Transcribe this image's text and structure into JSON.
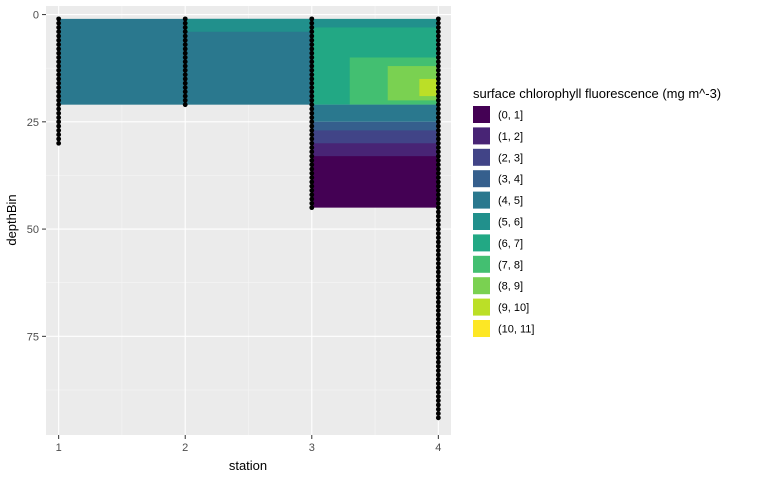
{
  "chart_data": {
    "type": "heatmap",
    "title": "",
    "xlabel": "station",
    "ylabel": "depthBin",
    "x_ticks": [
      1,
      2,
      3,
      4
    ],
    "y_ticks": [
      0,
      25,
      50,
      75
    ],
    "xlim": [
      0.9,
      4.1
    ],
    "ylim": [
      98,
      -2
    ],
    "y_reversed": true,
    "grid": true,
    "legend_position": "right",
    "legend": {
      "title": "surface chlorophyll fluorescence (mg m^-3)",
      "bins": [
        "(0, 1]",
        "(1, 2]",
        "(2, 3]",
        "(3, 4]",
        "(4, 5]",
        "(5, 6]",
        "(6, 7]",
        "(7, 8]",
        "(8, 9]",
        "(9, 10]",
        "(10, 11]"
      ],
      "colors": [
        "#440154",
        "#482475",
        "#414487",
        "#355F8D",
        "#2A788E",
        "#21908C",
        "#22A884",
        "#43BF71",
        "#7AD151",
        "#BBDF27",
        "#FDE725"
      ]
    },
    "regions": [
      {
        "x": [
          1,
          3
        ],
        "depth": [
          1,
          21
        ],
        "bin": "(4, 5]"
      },
      {
        "x": [
          2,
          3
        ],
        "depth": [
          1,
          4
        ],
        "bin": "(5, 6]"
      },
      {
        "x": [
          3,
          4
        ],
        "depth": [
          1,
          21
        ],
        "bin": "(5, 6]"
      },
      {
        "x": [
          3,
          4
        ],
        "depth": [
          3,
          21
        ],
        "bin": "(6, 7]"
      },
      {
        "x": [
          3.3,
          4
        ],
        "depth": [
          10,
          21
        ],
        "bin": "(7, 8]"
      },
      {
        "x": [
          3.6,
          4
        ],
        "depth": [
          12,
          20
        ],
        "bin": "(8, 9]"
      },
      {
        "x": [
          3.85,
          4
        ],
        "depth": [
          15,
          19
        ],
        "bin": "(9, 10]"
      },
      {
        "x": [
          3,
          4
        ],
        "depth": [
          21,
          25
        ],
        "bin": "(4, 5]"
      },
      {
        "x": [
          3,
          4
        ],
        "depth": [
          25,
          28
        ],
        "bin": "(3, 4]"
      },
      {
        "x": [
          3,
          4
        ],
        "depth": [
          27,
          31
        ],
        "bin": "(2, 3]"
      },
      {
        "x": [
          3,
          4
        ],
        "depth": [
          30,
          34
        ],
        "bin": "(1, 2]"
      },
      {
        "x": [
          3,
          4
        ],
        "depth": [
          33,
          45
        ],
        "bin": "(0, 1]"
      }
    ],
    "sample_points": [
      {
        "station": 1,
        "depth_min": 1,
        "depth_max": 30
      },
      {
        "station": 2,
        "depth_min": 1,
        "depth_max": 21
      },
      {
        "station": 3,
        "depth_min": 1,
        "depth_max": 45
      },
      {
        "station": 4,
        "depth_min": 1,
        "depth_max": 94
      }
    ]
  }
}
